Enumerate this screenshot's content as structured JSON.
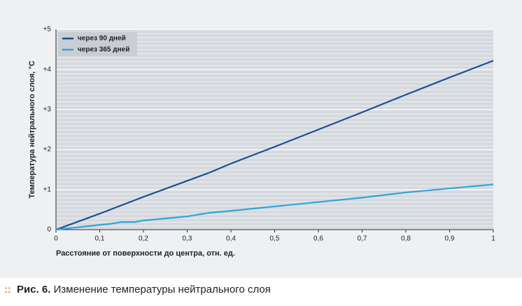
{
  "chart_data": {
    "type": "line",
    "y_label": "Температура нейтрального слоя, °С",
    "x_label": "Расстояние от поверхности до центра, отн. ед.",
    "xlim": [
      0,
      1
    ],
    "xticks": [
      0,
      {
        "value": 0.1,
        "label": "0,1"
      },
      {
        "value": 0.2,
        "label": "0,2"
      },
      {
        "value": 0.3,
        "label": "0,3"
      },
      {
        "value": 0.4,
        "label": "0,4"
      },
      {
        "value": 0.5,
        "label": "0,5"
      },
      {
        "value": 0.6,
        "label": "0,6"
      },
      {
        "value": 0.7,
        "label": "0,7"
      },
      {
        "value": 0.8,
        "label": "0,8"
      },
      {
        "value": 0.9,
        "label": "0,9"
      },
      1
    ],
    "ylim": [
      0,
      5
    ],
    "yticks": [
      0,
      {
        "value": 1,
        "label": "+1"
      },
      {
        "value": 2,
        "label": "+2"
      },
      {
        "value": 3,
        "label": "+3"
      },
      {
        "value": 4,
        "label": "+4"
      },
      {
        "value": 5,
        "label": "+5"
      }
    ],
    "grid": true,
    "legend": "top-left",
    "series": [
      {
        "name": "через 90 дней",
        "color": "#1c4f90",
        "x": [
          0,
          0.1,
          0.2,
          0.3,
          0.35,
          0.4,
          0.5,
          0.6,
          0.7,
          0.8,
          0.9,
          1
        ],
        "values": [
          0,
          0.4,
          0.82,
          1.22,
          1.42,
          1.65,
          2.07,
          2.5,
          2.93,
          3.37,
          3.8,
          4.22
        ]
      },
      {
        "name": "через 365 дней",
        "color": "#2fa4dc",
        "x": [
          0,
          0.1,
          0.12,
          0.15,
          0.18,
          0.2,
          0.3,
          0.35,
          0.4,
          0.5,
          0.6,
          0.7,
          0.8,
          0.9,
          1
        ],
        "values": [
          0,
          0.12,
          0.14,
          0.19,
          0.19,
          0.23,
          0.33,
          0.42,
          0.47,
          0.58,
          0.69,
          0.8,
          0.93,
          1.03,
          1.13
        ]
      }
    ]
  },
  "caption": {
    "label": "Рис. 6.",
    "text": "Изменение температуры нейтрального слоя"
  }
}
